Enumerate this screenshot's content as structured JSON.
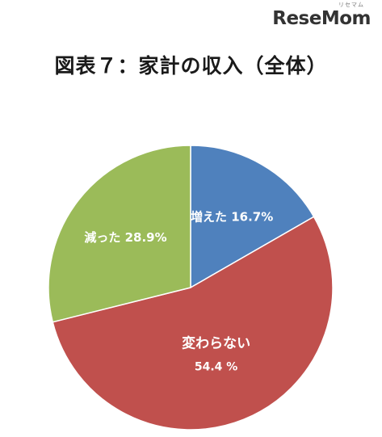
{
  "logo": {
    "text": "ReseMom",
    "subtext": "リセマム"
  },
  "chart_data": {
    "type": "pie",
    "title": "図表７：家計の収入（全体）",
    "slices": [
      {
        "name": "増えた",
        "label": "増えた 16.7%",
        "value": 16.7,
        "color": "#4f81bd"
      },
      {
        "name": "変わらない",
        "label": "変わらない",
        "value_label": "54.4 %",
        "value": 54.4,
        "color": "#c0504d"
      },
      {
        "name": "減った",
        "label": "減った 28.9%",
        "value": 28.9,
        "color": "#9bbb59"
      }
    ],
    "start_angle": "12 o'clock",
    "direction": "clockwise",
    "legend": "none"
  }
}
